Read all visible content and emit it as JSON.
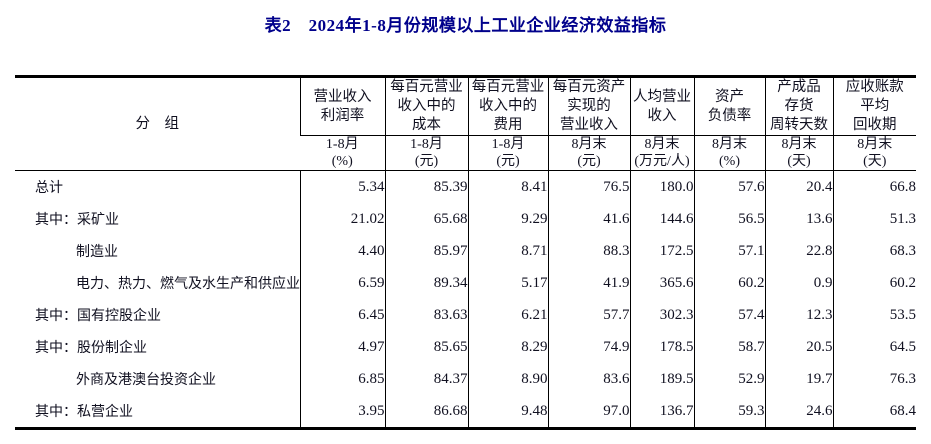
{
  "title": "表2　2024年1-8月份规模以上工业企业经济效益指标",
  "table": {
    "group_header": "分　组",
    "columns": [
      {
        "name": "营业收入\n利润率",
        "period": "1-8月",
        "unit": "(%)"
      },
      {
        "name": "每百元营业\n收入中的\n成本",
        "period": "1-8月",
        "unit": "(元)"
      },
      {
        "name": "每百元营业\n收入中的\n费用",
        "period": "1-8月",
        "unit": "(元)"
      },
      {
        "name": "每百元资产\n实现的\n营业收入",
        "period": "8月末",
        "unit": "(元)"
      },
      {
        "name": "人均营业\n收入",
        "period": "8月末",
        "unit": "(万元/人)"
      },
      {
        "name": "资产\n负债率",
        "period": "8月末",
        "unit": "(%)"
      },
      {
        "name": "产成品\n存货\n周转天数",
        "period": "8月末",
        "unit": "(天)"
      },
      {
        "name": "应收账款\n平均\n回收期",
        "period": "8月末",
        "unit": "(天)"
      }
    ],
    "rows": [
      {
        "label": "总计",
        "indent": 0,
        "values": [
          "5.34",
          "85.39",
          "8.41",
          "76.5",
          "180.0",
          "57.6",
          "20.4",
          "66.8"
        ]
      },
      {
        "label": "其中：采矿业",
        "indent": 0,
        "values": [
          "21.02",
          "65.68",
          "9.29",
          "41.6",
          "144.6",
          "56.5",
          "13.6",
          "51.3"
        ]
      },
      {
        "label": "制造业",
        "indent": 1,
        "values": [
          "4.40",
          "85.97",
          "8.71",
          "88.3",
          "172.5",
          "57.1",
          "22.8",
          "68.3"
        ]
      },
      {
        "label": "电力、热力、燃气及水生产和供应业",
        "indent": 1,
        "values": [
          "6.59",
          "89.34",
          "5.17",
          "41.9",
          "365.6",
          "60.2",
          "0.9",
          "60.2"
        ]
      },
      {
        "label": "其中：国有控股企业",
        "indent": 0,
        "values": [
          "6.45",
          "83.63",
          "6.21",
          "57.7",
          "302.3",
          "57.4",
          "12.3",
          "53.5"
        ]
      },
      {
        "label": "其中：股份制企业",
        "indent": 0,
        "values": [
          "4.97",
          "85.65",
          "8.29",
          "74.9",
          "178.5",
          "58.7",
          "20.5",
          "64.5"
        ]
      },
      {
        "label": "外商及港澳台投资企业",
        "indent": 1,
        "values": [
          "6.85",
          "84.37",
          "8.90",
          "83.6",
          "189.5",
          "52.9",
          "19.7",
          "76.3"
        ]
      },
      {
        "label": "其中：私营企业",
        "indent": 0,
        "values": [
          "3.95",
          "86.68",
          "9.48",
          "97.0",
          "136.7",
          "59.3",
          "24.6",
          "68.4"
        ]
      }
    ]
  }
}
